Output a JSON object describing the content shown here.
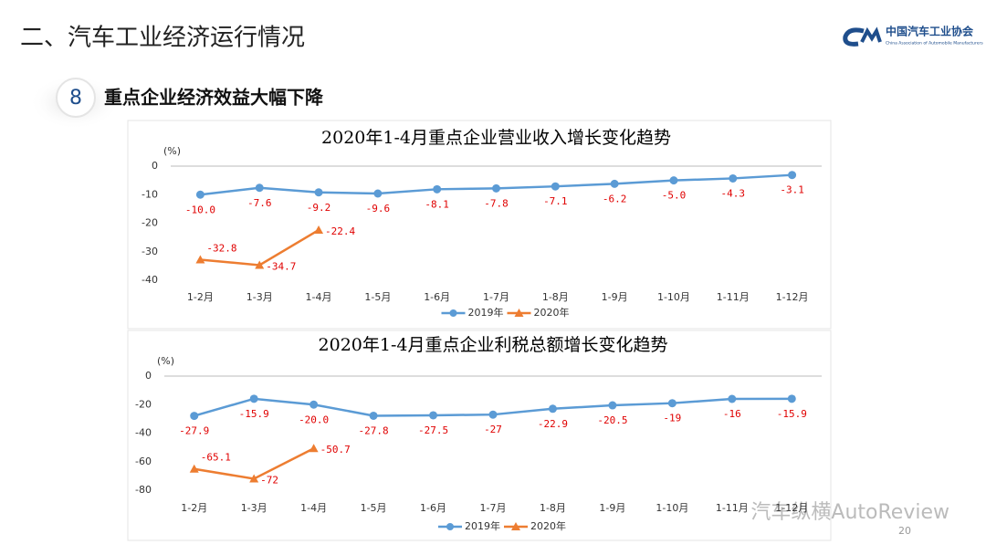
{
  "header": {
    "title": "二、汽车工业经济运行情况",
    "logo_cn": "中国汽车工业协会",
    "logo_en": "China Association of Automobile Manufacturers"
  },
  "section": {
    "number": "8",
    "title": "重点企业经济效益大幅下降"
  },
  "page_number": "20",
  "watermark": "汽车纵横AutoReview",
  "chart_data": [
    {
      "type": "line",
      "title": "2020年1-4月重点企业营业收入增长变化趋势",
      "y_unit": "(%)",
      "categories": [
        "1-2月",
        "1-3月",
        "1-4月",
        "1-5月",
        "1-6月",
        "1-7月",
        "1-8月",
        "1-9月",
        "1-10月",
        "1-11月",
        "1-12月"
      ],
      "series": [
        {
          "name": "2019年",
          "color": "#5b9bd5",
          "values": [
            -10.0,
            -7.6,
            -9.2,
            -9.6,
            -8.1,
            -7.8,
            -7.1,
            -6.2,
            -5.0,
            -4.3,
            -3.1
          ],
          "value_labels": [
            "-10.0",
            "-7.6",
            "-9.2",
            "-9.6",
            "-8.1",
            "-7.8",
            "-7.1",
            "-6.2",
            "-5.0",
            "-4.3",
            "-3.1"
          ]
        },
        {
          "name": "2020年",
          "color": "#ed7d31",
          "values": [
            -32.8,
            -34.7,
            -22.4,
            null,
            null,
            null,
            null,
            null,
            null,
            null,
            null
          ]
        }
      ],
      "ylim": [
        -40,
        0
      ],
      "yticks": [
        0,
        -10,
        -20,
        -30,
        -40
      ]
    },
    {
      "type": "line",
      "title": "2020年1-4月重点企业利税总额增长变化趋势",
      "y_unit": "(%)",
      "categories": [
        "1-2月",
        "1-3月",
        "1-4月",
        "1-5月",
        "1-6月",
        "1-7月",
        "1-8月",
        "1-9月",
        "1-10月",
        "1-11月",
        "1-12月"
      ],
      "series": [
        {
          "name": "2019年",
          "color": "#5b9bd5",
          "values": [
            -27.9,
            -15.9,
            -20.0,
            -27.8,
            -27.5,
            -27,
            -22.9,
            -20.5,
            -19,
            -16,
            -15.9
          ],
          "value_labels": [
            "-27.9",
            "-15.9",
            "-20.0",
            "-27.8",
            "-27.5",
            "-27",
            "-22.9",
            "-20.5",
            "-19",
            "-16",
            "-15.9"
          ]
        },
        {
          "name": "2020年",
          "color": "#ed7d31",
          "values": [
            -65.1,
            -72,
            -50.7,
            null,
            null,
            null,
            null,
            null,
            null,
            null,
            null
          ]
        }
      ],
      "ylim": [
        -80,
        0
      ],
      "yticks": [
        0,
        -20,
        -40,
        -60,
        -80
      ]
    }
  ]
}
